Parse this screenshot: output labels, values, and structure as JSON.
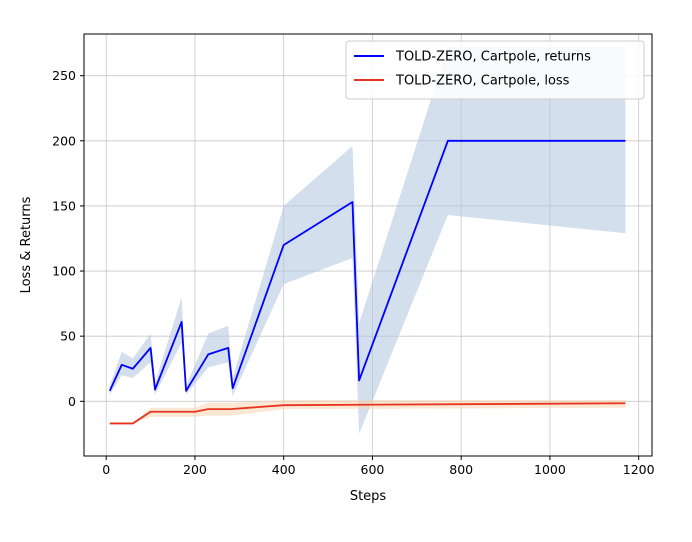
{
  "chart_data": {
    "type": "line",
    "title": "",
    "xlabel": "Steps",
    "ylabel": "Loss & Returns",
    "xlim": [
      -50,
      1230
    ],
    "ylim": [
      -42,
      282
    ],
    "xticks": [
      0,
      200,
      400,
      600,
      800,
      1000,
      1200
    ],
    "yticks": [
      0,
      50,
      100,
      150,
      200,
      250
    ],
    "grid": true,
    "legend_position": "top-right",
    "series": [
      {
        "name": "TOLD-ZERO, Cartpole, returns",
        "color": "#0000ff",
        "band_color": "#b0c4de",
        "x": [
          8,
          35,
          60,
          100,
          110,
          170,
          180,
          230,
          275,
          285,
          400,
          555,
          570,
          770,
          1000,
          1170
        ],
        "y": [
          8,
          28,
          25,
          41,
          9,
          61,
          8,
          36,
          41,
          10,
          120,
          153,
          16,
          200,
          200,
          200
        ],
        "lower": [
          5,
          20,
          18,
          30,
          5,
          45,
          5,
          26,
          30,
          4,
          90,
          110,
          -25,
          143,
          135,
          129
        ],
        "upper": [
          12,
          38,
          33,
          52,
          14,
          80,
          12,
          52,
          58,
          18,
          150,
          196,
          60,
          272,
          272,
          272
        ]
      },
      {
        "name": "TOLD-ZERO, Cartpole, loss",
        "color": "#e8341c",
        "band_color": "#f5d5b0",
        "x": [
          8,
          60,
          100,
          200,
          230,
          280,
          400,
          1170
        ],
        "y": [
          -17,
          -17,
          -8,
          -8,
          -6,
          -6,
          -3,
          -1.5
        ],
        "lower": [
          -17,
          -17,
          -12,
          -12,
          -11,
          -11,
          -6,
          -5
        ],
        "upper": [
          -17,
          -17,
          -5,
          -5,
          -1,
          -1,
          1,
          1
        ]
      }
    ]
  }
}
